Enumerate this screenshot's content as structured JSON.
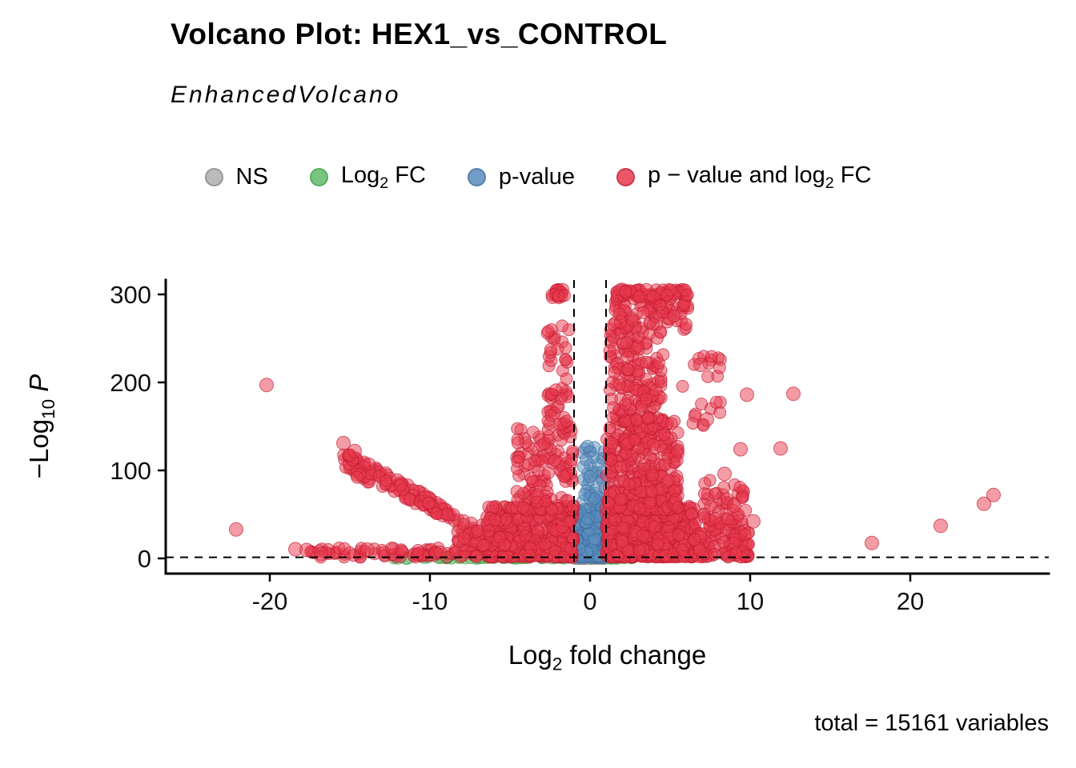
{
  "chart_data": {
    "type": "scatter",
    "title": "Volcano Plot: HEX1_vs_CONTROL",
    "subtitle": "EnhancedVolcano",
    "caption": "total = 15161 variables",
    "total_variables": 15161,
    "xlabel_parts": [
      {
        "text": "Log"
      },
      {
        "sub": "2"
      },
      {
        "text": " fold change"
      }
    ],
    "ylabel_parts": [
      {
        "text": "−Log"
      },
      {
        "sub": "10"
      },
      {
        "text": " "
      },
      {
        "italic": "P"
      }
    ],
    "x_ticks": [
      -20,
      -10,
      0,
      10,
      20
    ],
    "y_ticks": [
      0,
      100,
      200,
      300
    ],
    "xlim": [
      -26.5,
      28.6
    ],
    "ylim": [
      -17,
      316
    ],
    "grid": false,
    "legend_position": "top",
    "thresholds": {
      "vertical_x": [
        -1,
        1
      ],
      "horizontal_y": 1.3,
      "style": "dashed"
    },
    "legend_items": [
      {
        "category": "ns",
        "parts": [
          {
            "text": "NS"
          }
        ]
      },
      {
        "category": "fc",
        "parts": [
          {
            "text": "Log"
          },
          {
            "sub": "2"
          },
          {
            "text": " FC"
          }
        ]
      },
      {
        "category": "p",
        "parts": [
          {
            "text": "p-value"
          }
        ]
      },
      {
        "category": "both",
        "parts": [
          {
            "text": "p − value and log"
          },
          {
            "sub": "2"
          },
          {
            "text": " FC"
          }
        ]
      }
    ],
    "category_styles": {
      "ns": {
        "fill": "#B0B0B0",
        "stroke": "#848484"
      },
      "fc": {
        "fill": "#62BB6B",
        "stroke": "#3E9E47"
      },
      "p": {
        "fill": "#5B8DBE",
        "stroke": "#3A6B9E"
      },
      "both": {
        "fill": "#E83A4E",
        "stroke": "#C1182E"
      }
    },
    "seed": 42,
    "clusters": [
      {
        "category": "ns",
        "x": [
          -0.98,
          0.98
        ],
        "y": [
          0,
          1.4
        ],
        "count": 140,
        "skew": 1
      },
      {
        "category": "fc",
        "x": [
          -12.5,
          -1.1
        ],
        "y": [
          0,
          1.3
        ],
        "count": 42,
        "skew": 1
      },
      {
        "category": "fc",
        "x": [
          1.1,
          3.2
        ],
        "y": [
          0,
          1.2
        ],
        "count": 10,
        "skew": 1
      },
      {
        "category": "p",
        "x": [
          -0.95,
          0.95
        ],
        "y": [
          1.5,
          55
        ],
        "count": 240,
        "skew": 2.2
      },
      {
        "category": "p",
        "x": [
          -0.6,
          0.95
        ],
        "y": [
          40,
          128
        ],
        "count": 70,
        "skew": 1.8
      },
      {
        "category": "both",
        "x": [
          1.0,
          6.5
        ],
        "y": [
          1.5,
          60
        ],
        "count": 650,
        "skew": 1.6
      },
      {
        "category": "both",
        "x": [
          1.0,
          5.5
        ],
        "y": [
          55,
          160
        ],
        "count": 330,
        "skew": 1.4
      },
      {
        "category": "both",
        "x": [
          1.2,
          4.6
        ],
        "y": [
          155,
          265
        ],
        "count": 150,
        "skew": 1.2
      },
      {
        "category": "both",
        "x": [
          1.4,
          6.3
        ],
        "y": [
          260,
          300
        ],
        "count": 80,
        "skew": 1
      },
      {
        "category": "both",
        "x": [
          1.6,
          6.2
        ],
        "y": [
          297,
          306
        ],
        "count": 60,
        "skew": 1
      },
      {
        "category": "both",
        "x": [
          -6.5,
          -1.0
        ],
        "y": [
          1.5,
          60
        ],
        "count": 400,
        "skew": 1.7
      },
      {
        "category": "both",
        "x": [
          -4.6,
          -1.0
        ],
        "y": [
          55,
          150
        ],
        "count": 130,
        "skew": 1.4
      },
      {
        "category": "both",
        "x": [
          -2.7,
          -1.3
        ],
        "y": [
          145,
          265
        ],
        "count": 50,
        "skew": 1.1
      },
      {
        "category": "both",
        "x": [
          -2.4,
          -1.6
        ],
        "y": [
          296,
          306
        ],
        "count": 20,
        "skew": 1
      },
      {
        "category": "both",
        "x": [
          6.5,
          9.9
        ],
        "y": [
          1.5,
          40
        ],
        "count": 110,
        "skew": 1.6
      },
      {
        "category": "both",
        "x": [
          7.0,
          9.8
        ],
        "y": [
          40,
          90
        ],
        "count": 45,
        "skew": 1.3
      },
      {
        "category": "both",
        "x": [
          5.5,
          8.2
        ],
        "y": [
          150,
          235
        ],
        "count": 22,
        "skew": 1
      },
      {
        "category": "both",
        "x": [
          -17.5,
          -6.0
        ],
        "y": [
          1.5,
          12
        ],
        "count": 85,
        "skew": 1.2
      },
      {
        "category": "both",
        "x": [
          -8.3,
          -5.0
        ],
        "y": [
          14,
          45
        ],
        "count": 70,
        "skew": 1.3
      },
      {
        "category": "both",
        "shape": "trapezoid",
        "x": [
          -15.5,
          -8.3
        ],
        "y0": [
          100,
          124
        ],
        "y1": [
          40,
          54
        ],
        "count": 130
      }
    ],
    "outliers": [
      {
        "x": -20.2,
        "y": 197,
        "category": "both"
      },
      {
        "x": -22.1,
        "y": 33,
        "category": "both"
      },
      {
        "x": -18.4,
        "y": 10.5,
        "category": "both"
      },
      {
        "x": -17.7,
        "y": 9.5,
        "category": "both"
      },
      {
        "x": -16.8,
        "y": 5,
        "category": "both"
      },
      {
        "x": -15.4,
        "y": 131,
        "category": "both"
      },
      {
        "x": -14.7,
        "y": 122,
        "category": "both"
      },
      {
        "x": -13.9,
        "y": 10,
        "category": "both"
      },
      {
        "x": 9.4,
        "y": 124,
        "category": "both"
      },
      {
        "x": 11.9,
        "y": 125,
        "category": "both"
      },
      {
        "x": 9.8,
        "y": 186,
        "category": "both"
      },
      {
        "x": 12.7,
        "y": 187,
        "category": "both"
      },
      {
        "x": 17.6,
        "y": 17.5,
        "category": "both"
      },
      {
        "x": 21.9,
        "y": 37,
        "category": "both"
      },
      {
        "x": 24.6,
        "y": 62,
        "category": "both"
      },
      {
        "x": 25.2,
        "y": 72,
        "category": "both"
      },
      {
        "x": 8.4,
        "y": 96,
        "category": "both"
      },
      {
        "x": 7.3,
        "y": 158,
        "category": "both"
      },
      {
        "x": 6.9,
        "y": 220,
        "category": "both"
      },
      {
        "x": 10.2,
        "y": 42,
        "category": "both"
      },
      {
        "x": 9.0,
        "y": 60,
        "category": "both"
      }
    ]
  }
}
